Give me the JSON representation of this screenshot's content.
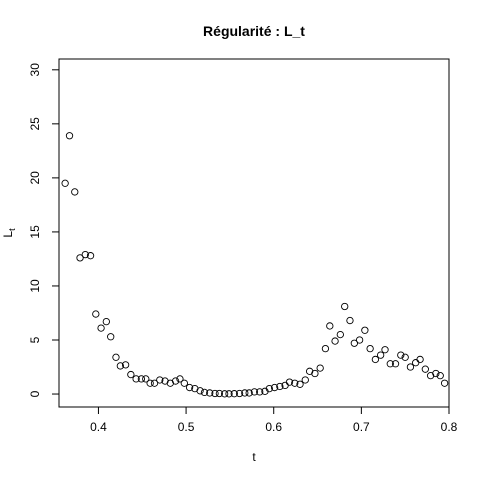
{
  "chart_data": {
    "type": "scatter",
    "title": "Régularité : L_t",
    "xlabel": "t",
    "ylabel": "L",
    "ylabel_subscript": "t",
    "xlim": [
      0.355,
      0.8
    ],
    "ylim": [
      -1.2,
      31
    ],
    "xticks": [
      0.4,
      0.5,
      0.6,
      0.7,
      0.8
    ],
    "xtick_labels": [
      "0.4",
      "0.5",
      "0.6",
      "0.7",
      "0.8"
    ],
    "yticks": [
      0,
      5,
      10,
      15,
      20,
      25,
      30
    ],
    "ytick_labels": [
      "0",
      "5",
      "10",
      "15",
      "20",
      "25",
      "30"
    ],
    "grid": false,
    "marker": "open-circle",
    "colors": {
      "points": "#000000",
      "axes": "#000000",
      "background": "#ffffff"
    },
    "x": [
      0.362,
      0.367,
      0.373,
      0.379,
      0.385,
      0.391,
      0.397,
      0.403,
      0.409,
      0.414,
      0.42,
      0.425,
      0.431,
      0.437,
      0.443,
      0.449,
      0.454,
      0.459,
      0.464,
      0.47,
      0.476,
      0.482,
      0.488,
      0.493,
      0.498,
      0.504,
      0.51,
      0.516,
      0.521,
      0.527,
      0.533,
      0.538,
      0.544,
      0.549,
      0.555,
      0.561,
      0.567,
      0.572,
      0.578,
      0.584,
      0.59,
      0.595,
      0.601,
      0.607,
      0.613,
      0.618,
      0.624,
      0.63,
      0.636,
      0.641,
      0.647,
      0.653,
      0.659,
      0.664,
      0.67,
      0.676,
      0.681,
      0.687,
      0.692,
      0.698,
      0.704,
      0.71,
      0.716,
      0.722,
      0.727,
      0.733,
      0.739,
      0.745,
      0.75,
      0.756,
      0.762,
      0.767,
      0.773,
      0.779,
      0.785,
      0.79,
      0.795
    ],
    "y": [
      19.5,
      23.9,
      18.7,
      12.6,
      12.9,
      12.8,
      7.4,
      6.1,
      6.7,
      5.3,
      3.4,
      2.6,
      2.7,
      1.8,
      1.4,
      1.4,
      1.4,
      1.0,
      1.0,
      1.3,
      1.2,
      1.0,
      1.2,
      1.4,
      1.0,
      0.6,
      0.5,
      0.3,
      0.15,
      0.1,
      0.05,
      0.05,
      0.02,
      0.02,
      0.03,
      0.05,
      0.1,
      0.1,
      0.2,
      0.2,
      0.25,
      0.5,
      0.6,
      0.7,
      0.8,
      1.1,
      1.0,
      0.9,
      1.3,
      2.1,
      1.9,
      2.4,
      4.2,
      6.3,
      4.9,
      5.5,
      8.1,
      6.8,
      4.7,
      5.0,
      5.9,
      4.2,
      3.2,
      3.6,
      4.1,
      2.8,
      2.8,
      3.6,
      3.4,
      2.5,
      2.9,
      3.2,
      2.3,
      1.7,
      1.9,
      1.7,
      1.0
    ]
  }
}
